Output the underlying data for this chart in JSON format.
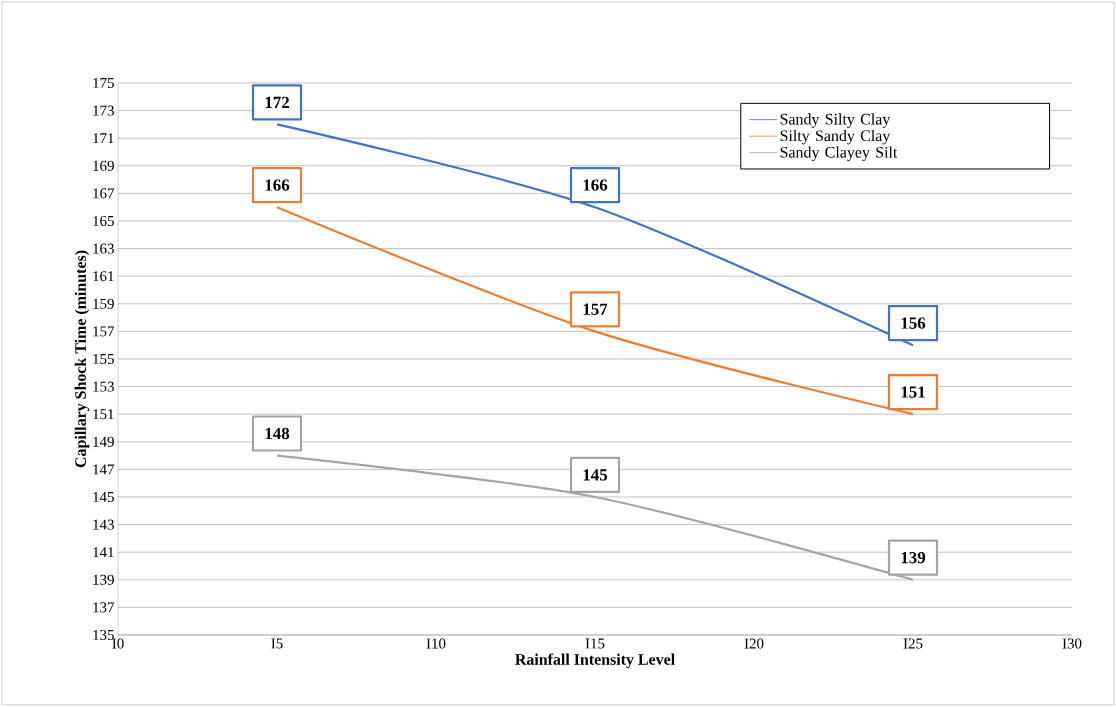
{
  "chart_data": {
    "type": "line",
    "xlabel": "Rainfall Intensity Level",
    "ylabel": "Capillary Shock Time (minutes)",
    "categories": [
      "I0",
      "I5",
      "I10",
      "I15",
      "I20",
      "I25",
      "I30"
    ],
    "series": [
      {
        "name": "Sandy Silty Clay",
        "color": "#4472c4",
        "values": [
          null,
          172,
          null,
          166,
          null,
          156,
          null
        ]
      },
      {
        "name": "Silty Sandy Clay",
        "color": "#ed7d31",
        "values": [
          null,
          166,
          null,
          157,
          null,
          151,
          null
        ]
      },
      {
        "name": "Sandy Clayey Silt",
        "color": "#a5a5a5",
        "values": [
          null,
          148,
          null,
          145,
          null,
          139,
          null
        ]
      }
    ],
    "ylim": [
      135,
      175
    ],
    "yticks": [
      135,
      137,
      139,
      141,
      143,
      145,
      147,
      149,
      151,
      153,
      155,
      157,
      159,
      161,
      163,
      165,
      167,
      169,
      171,
      173,
      175
    ],
    "grid": "y",
    "legend": "top right",
    "marker": "none",
    "line_style": "solid",
    "data_labels": true
  }
}
